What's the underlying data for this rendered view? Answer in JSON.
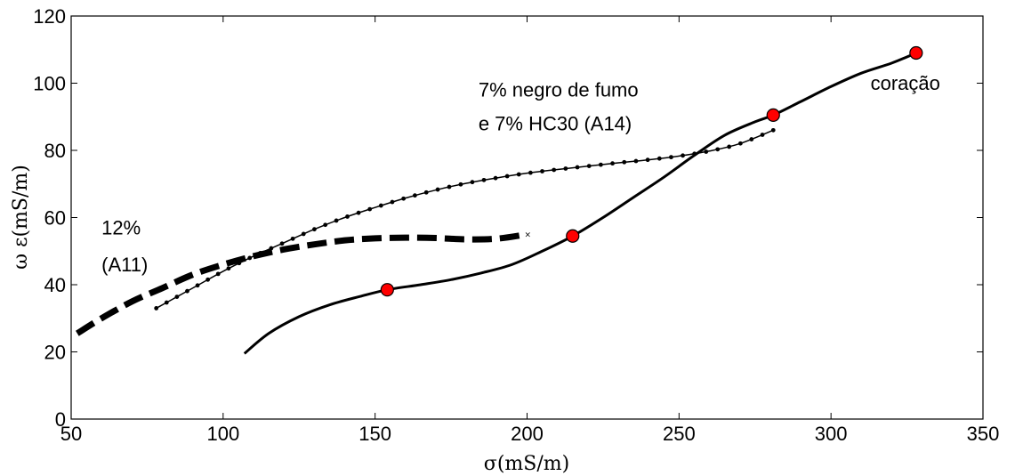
{
  "chart_data": {
    "type": "line",
    "xlabel": "σ(mS/m)",
    "ylabel": "ω ε(mS/m)",
    "xlim": [
      50,
      350
    ],
    "ylim": [
      0,
      120
    ],
    "xticks": [
      50,
      100,
      150,
      200,
      250,
      300,
      350
    ],
    "yticks": [
      0,
      20,
      40,
      60,
      80,
      100,
      120
    ],
    "grid": false,
    "annotations": [
      {
        "text": "12%",
        "x": 60,
        "y": 55
      },
      {
        "text": "(A11)",
        "x": 60,
        "y": 44
      },
      {
        "text": "7% negro de fumo",
        "x": 184,
        "y": 96
      },
      {
        "text": "e 7% HC30 (A14)",
        "x": 184,
        "y": 86
      },
      {
        "text": "coração",
        "x": 313,
        "y": 98
      }
    ],
    "series": [
      {
        "style": "dashed-thick",
        "color": "#000000",
        "x": [
          52,
          60,
          70,
          80,
          90,
          100,
          110,
          120,
          130,
          140,
          150,
          160,
          170,
          180,
          190,
          200
        ],
        "y": [
          25.5,
          30,
          35,
          39,
          43,
          46,
          48.5,
          50.5,
          52,
          53.2,
          53.8,
          54,
          53.9,
          53.5,
          53.7,
          55
        ]
      },
      {
        "style": "dotted-markers",
        "color": "#000000",
        "x": [
          78,
          85,
          92,
          100,
          110,
          120,
          130,
          140,
          150,
          160,
          170,
          180,
          190,
          200,
          210,
          220,
          230,
          240,
          250,
          260,
          270,
          281
        ],
        "y": [
          33,
          36.5,
          40,
          44,
          48.5,
          52.5,
          56.5,
          60,
          63,
          65.8,
          68.2,
          70.2,
          71.8,
          73.2,
          74.3,
          75.3,
          76.3,
          77.2,
          78.3,
          79.8,
          82,
          86
        ]
      },
      {
        "style": "solid",
        "color": "#000000",
        "x": [
          107,
          115,
          125,
          135,
          145,
          154,
          165,
          175,
          185,
          195,
          205,
          215,
          225,
          235,
          245,
          255,
          265,
          275,
          281,
          290,
          300,
          310,
          320,
          328
        ],
        "y": [
          19.5,
          25.5,
          30.5,
          34,
          36.5,
          38.5,
          40,
          41.5,
          43.5,
          46,
          50,
          54.5,
          60,
          66,
          72,
          78.5,
          84.5,
          88.5,
          90.5,
          94.5,
          99,
          103,
          106,
          109
        ]
      }
    ],
    "markers": {
      "color": "#ff0000",
      "edge": "#000000",
      "points": [
        {
          "x": 154,
          "y": 38.5
        },
        {
          "x": 215,
          "y": 54.5
        },
        {
          "x": 281,
          "y": 90.5
        },
        {
          "x": 328,
          "y": 109
        }
      ]
    }
  }
}
